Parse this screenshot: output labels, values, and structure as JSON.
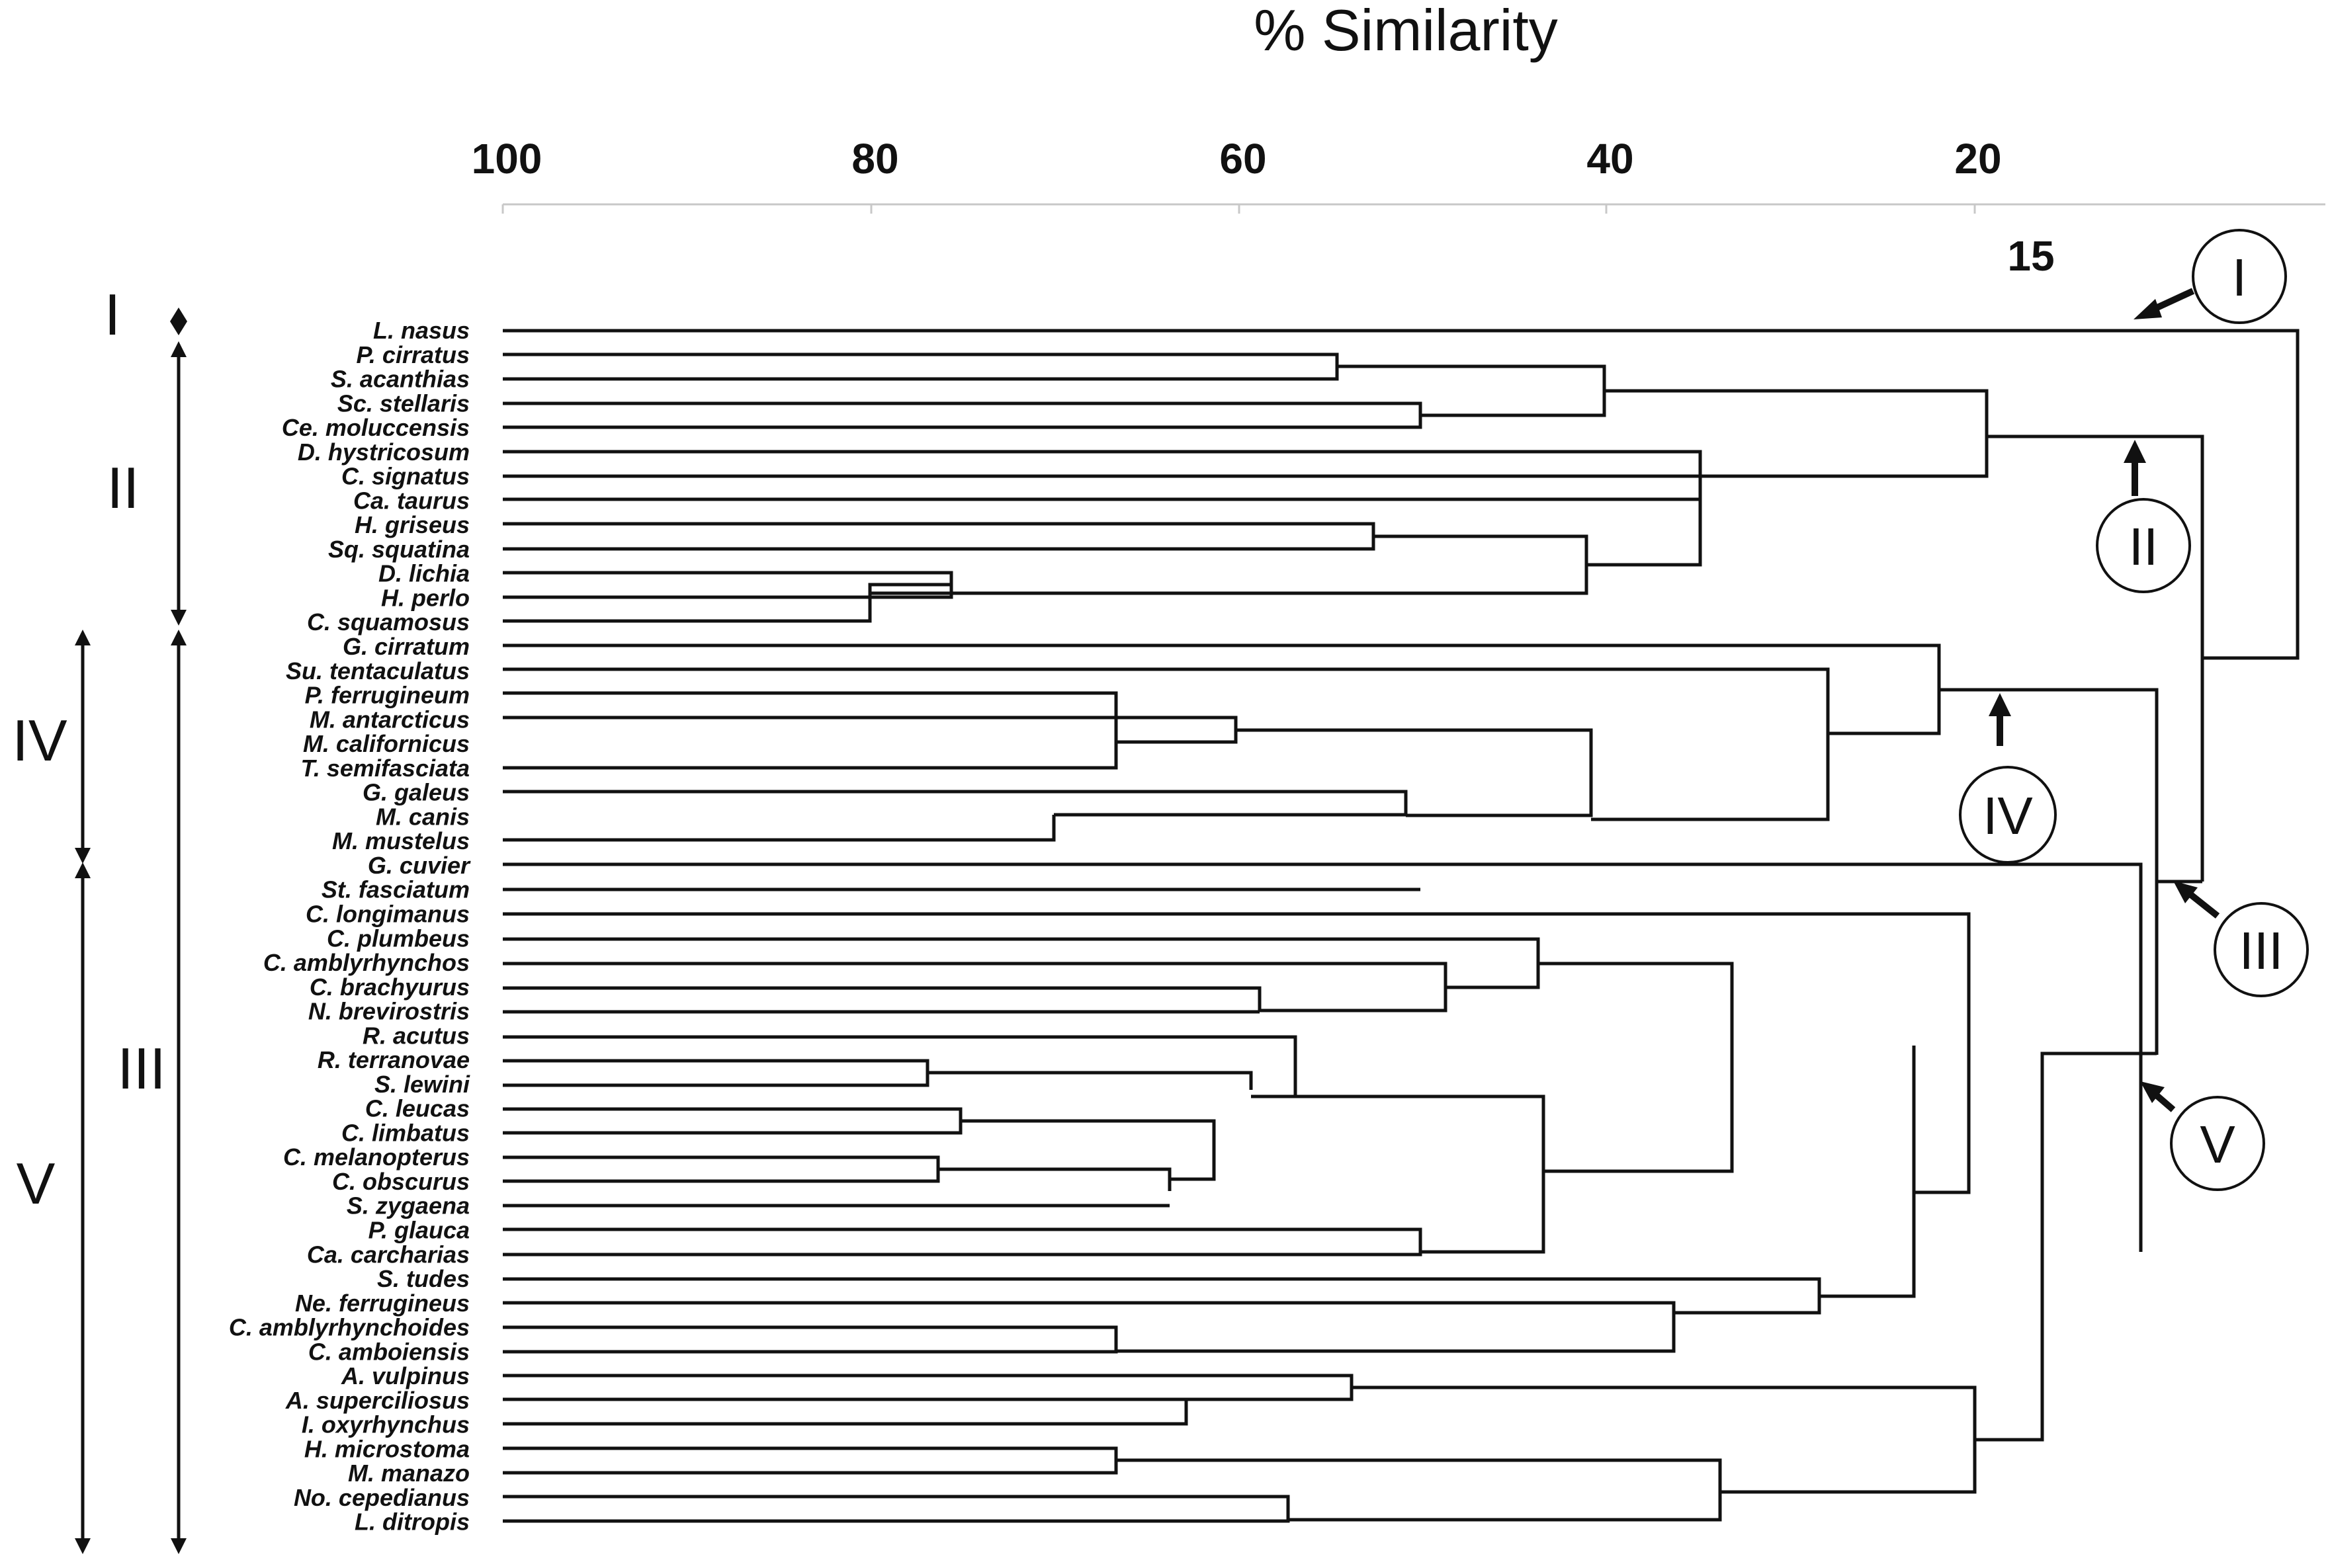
{
  "title": "% Similarity",
  "axis": {
    "ticks": [
      "100",
      "80",
      "60",
      "40",
      "20"
    ],
    "extra_mark": "15"
  },
  "taxa": [
    "L. nasus",
    "P. cirratus",
    "S. acanthias",
    "Sc. stellaris",
    "Ce. moluccensis",
    "D. hystricosum",
    "C. signatus",
    "Ca. taurus",
    "H. griseus",
    "Sq. squatina",
    "D. lichia",
    "H. perlo",
    "C. squamosus",
    "G. cirratum",
    "Su. tentaculatus",
    "P. ferrugineum",
    "M. antarcticus",
    "M. californicus",
    "T. semifasciata",
    "G. galeus",
    "M. canis",
    "M. mustelus",
    "G. cuvier",
    "St. fasciatum",
    "C. longimanus",
    "C. plumbeus",
    "C. amblyrhynchos",
    "C. brachyurus",
    "N. brevirostris",
    "R. acutus",
    "R. terranovae",
    "S. lewini",
    "C. leucas",
    "C. limbatus",
    "C. melanopterus",
    "C. obscurus",
    "S. zygaena",
    "P. glauca",
    "Ca. carcharias",
    "S. tudes",
    "Ne. ferrugineus",
    "C. amblyrhynchoides",
    "C. amboiensis",
    "A. vulpinus",
    "A. superciliosus",
    "I. oxyrhynchus",
    "H. microstoma",
    "M. manazo",
    "No. cepedianus",
    "L. ditropis"
  ],
  "group_labels": {
    "I": "I",
    "II": "II",
    "III": "III",
    "IV": "IV",
    "V": "V"
  },
  "cluster_callouts": {
    "I": "I",
    "II": "II",
    "III": "III",
    "IV": "IV",
    "V": "V"
  }
}
